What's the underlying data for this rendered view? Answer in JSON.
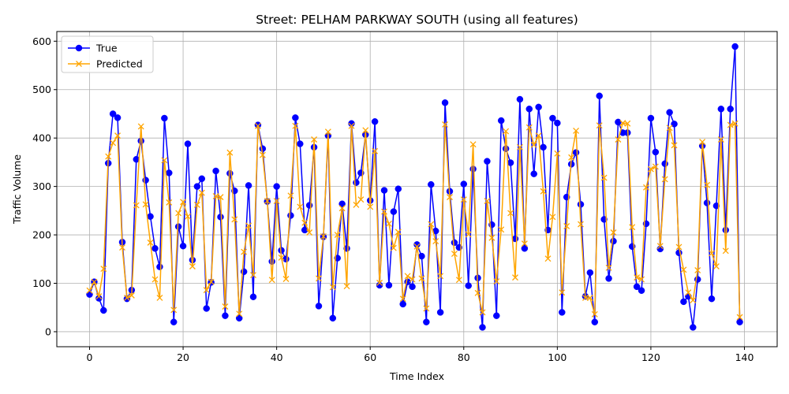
{
  "chart_data": {
    "type": "line",
    "title": "Street: PELHAM PARKWAY SOUTH (using all features)",
    "xlabel": "Time Index",
    "ylabel": "Traffic Volume",
    "xlim": [
      -7,
      147
    ],
    "ylim": [
      -31,
      620
    ],
    "xticks": [
      0,
      20,
      40,
      60,
      80,
      100,
      120,
      140
    ],
    "yticks": [
      0,
      100,
      200,
      300,
      400,
      500,
      600
    ],
    "grid": true,
    "legend_position": "top-left",
    "x": [
      0,
      1,
      2,
      3,
      4,
      5,
      6,
      7,
      8,
      9,
      10,
      11,
      12,
      13,
      14,
      15,
      16,
      17,
      18,
      19,
      20,
      21,
      22,
      23,
      24,
      25,
      26,
      27,
      28,
      29,
      30,
      31,
      32,
      33,
      34,
      35,
      36,
      37,
      38,
      39,
      40,
      41,
      42,
      43,
      44,
      45,
      46,
      47,
      48,
      49,
      50,
      51,
      52,
      53,
      54,
      55,
      56,
      57,
      58,
      59,
      60,
      61,
      62,
      63,
      64,
      65,
      66,
      67,
      68,
      69,
      70,
      71,
      72,
      73,
      74,
      75,
      76,
      77,
      78,
      79,
      80,
      81,
      82,
      83,
      84,
      85,
      86,
      87,
      88,
      89,
      90,
      91,
      92,
      93,
      94,
      95,
      96,
      97,
      98,
      99,
      100,
      101,
      102,
      103,
      104,
      105,
      106,
      107,
      108,
      109,
      110,
      111,
      112,
      113,
      114,
      115,
      116,
      117,
      118,
      119,
      120,
      121,
      122,
      123,
      124,
      125,
      126,
      127,
      128,
      129,
      130,
      131,
      132,
      133,
      134,
      135,
      136,
      137,
      138,
      139
    ],
    "series": [
      {
        "name": "True",
        "color": "#0000ff",
        "marker": "circle",
        "values": [
          77,
          103,
          69,
          44,
          348,
          450,
          442,
          185,
          68,
          86,
          356,
          394,
          313,
          238,
          172,
          134,
          441,
          328,
          20,
          217,
          177,
          388,
          148,
          300,
          316,
          48,
          102,
          332,
          237,
          33,
          327,
          291,
          28,
          124,
          302,
          72,
          427,
          378,
          269,
          145,
          300,
          168,
          150,
          240,
          442,
          388,
          210,
          261,
          381,
          53,
          196,
          405,
          28,
          152,
          264,
          172,
          430,
          308,
          328,
          407,
          271,
          434,
          96,
          292,
          96,
          248,
          295,
          57,
          103,
          93,
          180,
          156,
          20,
          304,
          208,
          40,
          473,
          290,
          184,
          174,
          305,
          95,
          336,
          111,
          9,
          352,
          221,
          33,
          436,
          378,
          349,
          192,
          480,
          172,
          460,
          326,
          464,
          381,
          210,
          441,
          431,
          40,
          278,
          346,
          370,
          263,
          73,
          122,
          20,
          487,
          232,
          110,
          187,
          433,
          411,
          411,
          176,
          93,
          85,
          223,
          441,
          371,
          171,
          347,
          453,
          429,
          163,
          62,
          73,
          9,
          108,
          384,
          266,
          68,
          260,
          460,
          210,
          460,
          589,
          20
        ]
      },
      {
        "name": "Predicted",
        "color": "#ffa500",
        "marker": "x",
        "values": [
          85,
          103,
          73,
          130,
          362,
          390,
          405,
          174,
          70,
          75,
          261,
          424,
          263,
          184,
          108,
          70,
          354,
          267,
          45,
          245,
          268,
          238,
          135,
          262,
          287,
          86,
          103,
          280,
          278,
          52,
          370,
          232,
          37,
          165,
          219,
          117,
          425,
          365,
          270,
          107,
          270,
          153,
          109,
          281,
          425,
          258,
          225,
          205,
          397,
          110,
          197,
          413,
          92,
          200,
          255,
          94,
          425,
          262,
          273,
          416,
          258,
          373,
          101,
          248,
          223,
          173,
          206,
          68,
          115,
          108,
          176,
          110,
          48,
          222,
          187,
          115,
          428,
          278,
          161,
          107,
          273,
          201,
          387,
          80,
          40,
          270,
          194,
          104,
          211,
          414,
          245,
          112,
          381,
          182,
          422,
          386,
          405,
          290,
          151,
          237,
          368,
          81,
          218,
          360,
          415,
          222,
          70,
          70,
          36,
          426,
          318,
          132,
          205,
          397,
          431,
          430,
          216,
          112,
          108,
          298,
          336,
          341,
          177,
          315,
          421,
          385,
          175,
          128,
          81,
          65,
          127,
          392,
          303,
          162,
          135,
          397,
          167,
          427,
          430,
          30
        ]
      }
    ]
  }
}
